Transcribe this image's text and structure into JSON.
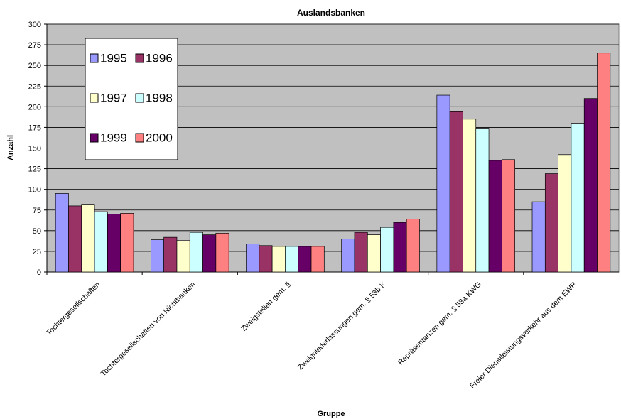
{
  "chart_data": {
    "type": "bar",
    "title": "Auslandsbanken",
    "x_label": "Gruppe",
    "y_label": "Anzahl",
    "categories": [
      "Tochtergesellschaften",
      "Tochtergesellschaften von Nichtbanken",
      "Zweigstellen gem. §",
      "Zweigniederlassungen gem. § 53b K",
      "Repräsentanzen gem. § 53a KWG",
      "Freier Dienstleistungsverkehr aus dem EWR"
    ],
    "series": [
      {
        "name": "1995",
        "color": "#9999ff",
        "values": [
          95,
          39,
          34,
          40,
          214,
          85
        ]
      },
      {
        "name": "1996",
        "color": "#993366",
        "values": [
          80,
          42,
          32,
          48,
          194,
          119
        ]
      },
      {
        "name": "1997",
        "color": "#ffffcc",
        "values": [
          82,
          38,
          31,
          45,
          185,
          142
        ]
      },
      {
        "name": "1998",
        "color": "#ccffff",
        "values": [
          73,
          48,
          31,
          54,
          174,
          180
        ]
      },
      {
        "name": "1999",
        "color": "#660066",
        "values": [
          70,
          45,
          31,
          60,
          135,
          210
        ]
      },
      {
        "name": "2000",
        "color": "#ff8080",
        "values": [
          71,
          47,
          31,
          64,
          136,
          265
        ]
      }
    ],
    "ylim": [
      0,
      300
    ],
    "yticks": [
      0,
      25,
      50,
      75,
      100,
      125,
      150,
      175,
      200,
      225,
      250,
      275,
      300
    ],
    "grid": true,
    "legend": "upper left"
  }
}
